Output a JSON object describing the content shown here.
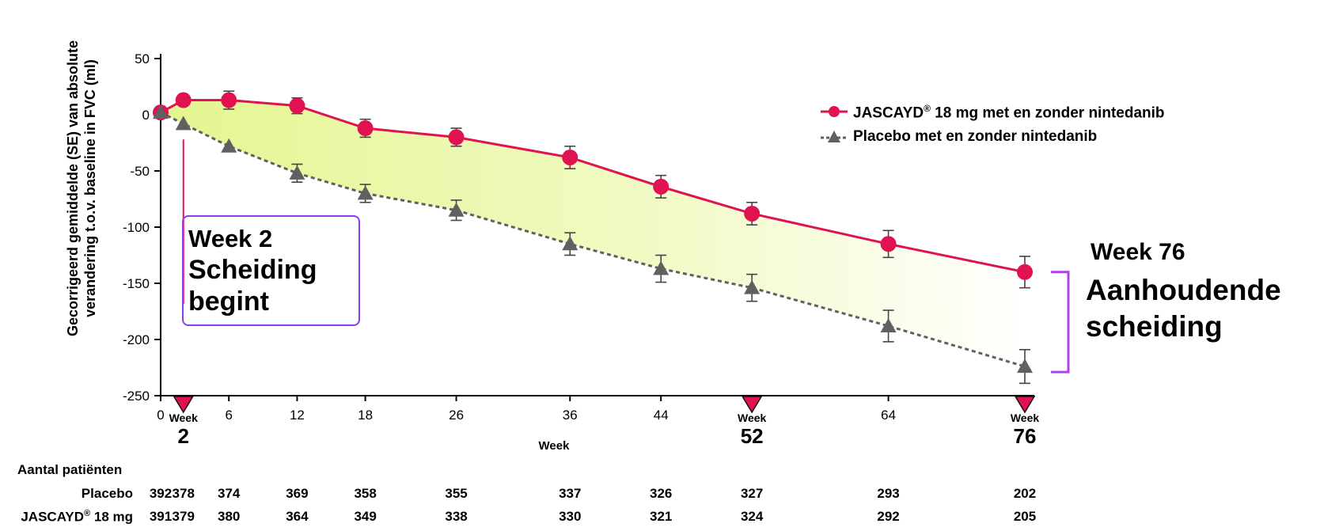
{
  "chart_data": {
    "type": "line",
    "ylabel_line1": "Gecorrigeerd gemiddelde (SE) van absolute",
    "ylabel_line2": "verandering t.o.v. baseline in FVC (ml)",
    "xlabel": "Week",
    "ylim": [
      -250,
      50
    ],
    "yticks": [
      50,
      0,
      -50,
      -100,
      -150,
      -200,
      -250
    ],
    "x_ticks": [
      "0",
      "6",
      "12",
      "18",
      "26",
      "36",
      "44",
      "64"
    ],
    "highlighted_weeks": [
      {
        "label": "Week",
        "value": "2"
      },
      {
        "label": "Week",
        "value": "52"
      },
      {
        "label": "Week",
        "value": "76"
      }
    ],
    "x": [
      0,
      2,
      6,
      12,
      18,
      26,
      36,
      44,
      52,
      64,
      76
    ],
    "series": [
      {
        "name": "JASCAYD® 18 mg met en zonder nintedanib",
        "color": "#e0124f",
        "style": "solid",
        "marker": "circle",
        "values": [
          2,
          13,
          13,
          8,
          -12,
          -20,
          -38,
          -64,
          -88,
          -115,
          -140
        ],
        "se": [
          0,
          0,
          8,
          7,
          8,
          8,
          10,
          10,
          10,
          12,
          14
        ]
      },
      {
        "name": "Placebo met en zonder nintedanib",
        "color": "#606060",
        "style": "dashed",
        "marker": "triangle",
        "values": [
          2,
          -8,
          -28,
          -52,
          -70,
          -85,
          -115,
          -137,
          -154,
          -188,
          -224
        ],
        "se": [
          0,
          0,
          0,
          8,
          8,
          9,
          10,
          12,
          12,
          14,
          15
        ]
      }
    ],
    "fill_between": "#e2f58a"
  },
  "legend": {
    "items": [
      {
        "brand": "JASCAYD",
        "sup": "®",
        "rest": " 18 mg met en zonder nintedanib"
      },
      {
        "brand": "Placebo met en zonder nintedanib",
        "sup": "",
        "rest": ""
      }
    ]
  },
  "annotations": {
    "week2": {
      "line1": "Week 2",
      "line2": "Scheiding",
      "line3": "begint",
      "border_color": "#8a3df0",
      "line_color": "#e0124f"
    },
    "week76": {
      "line1": "Week 76",
      "line2": "Aanhoudende",
      "line3": "scheiding",
      "bracket_color": "#b040e8"
    }
  },
  "patients": {
    "title": "Aantal patiënten",
    "rows": [
      {
        "label": "Placebo",
        "label_sup": "",
        "label_rest": "",
        "values": [
          "392",
          "378",
          "374",
          "369",
          "358",
          "355",
          "337",
          "326",
          "327",
          "293",
          "202"
        ]
      },
      {
        "label": "JASCAYD",
        "label_sup": "®",
        "label_rest": " 18 mg",
        "values": [
          "391",
          "379",
          "380",
          "364",
          "349",
          "338",
          "330",
          "321",
          "324",
          "292",
          "205"
        ]
      }
    ]
  }
}
